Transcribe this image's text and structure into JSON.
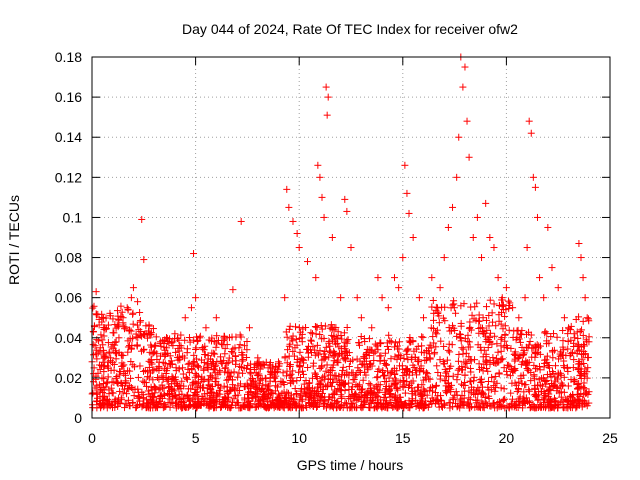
{
  "chart_data": {
    "type": "scatter",
    "title": "Day 044 of 2024, Rate Of TEC Index for receiver ofw2",
    "xlabel": "GPS time / hours",
    "ylabel": "ROTI / TECUs",
    "xlim": [
      0,
      25
    ],
    "ylim": [
      0,
      0.18
    ],
    "xticks": [
      0,
      5,
      10,
      15,
      20,
      25
    ],
    "xtick_labels": [
      "0",
      "5",
      "10",
      "15",
      "20",
      "25"
    ],
    "yticks": [
      0,
      0.02,
      0.04,
      0.06,
      0.08,
      0.1,
      0.12,
      0.14,
      0.16,
      0.18
    ],
    "ytick_labels": [
      "0",
      "0.02",
      "0.04",
      "0.06",
      "0.08",
      "0.1",
      "0.12",
      "0.14",
      "0.16",
      "0.18"
    ],
    "grid": true,
    "marker": "+",
    "marker_color": "#ff0000",
    "series": [
      {
        "name": "ROTI",
        "x": [
          0.1,
          0.2,
          0.4,
          0.6,
          0.9,
          1.3,
          1.5,
          1.7,
          1.9,
          2.0,
          2.2,
          2.4,
          2.5,
          2.6,
          2.9,
          3.3,
          3.6,
          4.0,
          4.2,
          4.5,
          4.8,
          4.9,
          5.0,
          5.2,
          5.5,
          6.0,
          6.4,
          6.8,
          6.9,
          7.2,
          7.6,
          8.0,
          8.5,
          9.0,
          9.3,
          9.4,
          9.5,
          9.7,
          9.9,
          10.0,
          10.4,
          10.8,
          10.9,
          11.0,
          11.1,
          11.2,
          11.3,
          11.35,
          11.4,
          11.6,
          12.0,
          12.2,
          12.3,
          12.5,
          12.8,
          13.0,
          13.5,
          13.8,
          14.0,
          14.3,
          14.6,
          14.8,
          15.0,
          15.1,
          15.2,
          15.3,
          15.5,
          15.8,
          16.0,
          16.4,
          16.8,
          17.0,
          17.2,
          17.4,
          17.6,
          17.7,
          17.8,
          17.9,
          18.0,
          18.1,
          18.2,
          18.4,
          18.6,
          18.8,
          19.0,
          19.2,
          19.4,
          19.6,
          19.8,
          20.0,
          20.3,
          20.6,
          20.9,
          21.0,
          21.1,
          21.2,
          21.3,
          21.4,
          21.5,
          21.6,
          21.8,
          22.0,
          22.2,
          22.5,
          22.8,
          23.0,
          23.3,
          23.5,
          23.6,
          23.7,
          23.8,
          23.9
        ],
        "y": [
          0.025,
          0.063,
          0.035,
          0.045,
          0.03,
          0.04,
          0.05,
          0.055,
          0.06,
          0.065,
          0.058,
          0.099,
          0.079,
          0.046,
          0.032,
          0.038,
          0.035,
          0.042,
          0.03,
          0.05,
          0.055,
          0.082,
          0.06,
          0.04,
          0.045,
          0.05,
          0.04,
          0.064,
          0.035,
          0.098,
          0.045,
          0.03,
          0.025,
          0.028,
          0.06,
          0.114,
          0.105,
          0.098,
          0.092,
          0.085,
          0.078,
          0.07,
          0.126,
          0.12,
          0.11,
          0.1,
          0.165,
          0.151,
          0.16,
          0.09,
          0.06,
          0.109,
          0.103,
          0.085,
          0.06,
          0.05,
          0.045,
          0.07,
          0.06,
          0.055,
          0.07,
          0.065,
          0.08,
          0.126,
          0.112,
          0.102,
          0.09,
          0.06,
          0.05,
          0.07,
          0.065,
          0.08,
          0.095,
          0.105,
          0.12,
          0.14,
          0.18,
          0.165,
          0.175,
          0.148,
          0.13,
          0.09,
          0.1,
          0.08,
          0.107,
          0.09,
          0.085,
          0.07,
          0.06,
          0.065,
          0.055,
          0.05,
          0.06,
          0.085,
          0.148,
          0.142,
          0.12,
          0.115,
          0.1,
          0.07,
          0.06,
          0.095,
          0.075,
          0.065,
          0.05,
          0.045,
          0.04,
          0.087,
          0.08,
          0.07,
          0.06,
          0.05
        ]
      }
    ]
  }
}
